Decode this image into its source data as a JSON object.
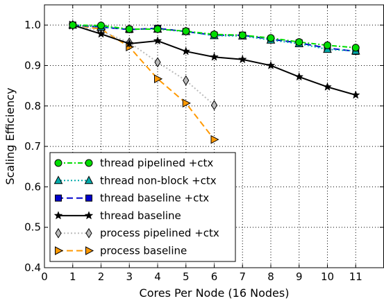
{
  "chart_data": {
    "type": "line",
    "xlabel": "Cores Per Node (16 Nodes)",
    "ylabel": "Scaling Efficiency",
    "xlim": [
      0,
      12
    ],
    "ylim": [
      0.4,
      1.05
    ],
    "xticks": [
      0,
      1,
      2,
      3,
      4,
      5,
      6,
      7,
      8,
      9,
      10,
      11
    ],
    "yticks": [
      0.4,
      0.5,
      0.6,
      0.7,
      0.8,
      0.9,
      1.0
    ],
    "ytick_labels": [
      "0.4",
      "0.5",
      "0.6",
      "0.7",
      "0.8",
      "0.9",
      "1.0"
    ],
    "grid": true,
    "legend_position": "lower-left",
    "series": [
      {
        "name": "thread pipelined +ctx",
        "color": "#00dd00",
        "marker": "circle",
        "line_style": "dashdot",
        "x": [
          1,
          2,
          3,
          4,
          5,
          6,
          7,
          8,
          9,
          10,
          11
        ],
        "y": [
          1.0,
          0.999,
          0.99,
          0.99,
          0.985,
          0.977,
          0.975,
          0.968,
          0.958,
          0.95,
          0.944
        ]
      },
      {
        "name": "thread non-block +ctx",
        "color": "#00aaaa",
        "marker": "triangle-up",
        "line_style": "dotted",
        "x": [
          1,
          2,
          3,
          4,
          5,
          6,
          7,
          8,
          9,
          10,
          11
        ],
        "y": [
          1.0,
          0.995,
          0.99,
          0.99,
          0.984,
          0.974,
          0.973,
          0.963,
          0.954,
          0.94,
          0.936
        ]
      },
      {
        "name": "thread baseline +ctx",
        "color": "#0000cc",
        "marker": "square",
        "line_style": "dashed",
        "x": [
          1,
          2,
          3,
          4,
          5,
          6,
          7,
          8,
          9,
          10,
          11
        ],
        "y": [
          1.0,
          0.995,
          0.989,
          0.992,
          0.984,
          0.975,
          0.975,
          0.965,
          0.956,
          0.943,
          0.935
        ]
      },
      {
        "name": "thread baseline",
        "color": "#000000",
        "marker": "star",
        "line_style": "solid",
        "x": [
          1,
          2,
          3,
          4,
          5,
          6,
          7,
          8,
          9,
          10,
          11
        ],
        "y": [
          1.0,
          0.978,
          0.954,
          0.961,
          0.935,
          0.921,
          0.915,
          0.9,
          0.872,
          0.847,
          0.827
        ]
      },
      {
        "name": "process pipelined +ctx",
        "color": "#bbbbbb",
        "marker": "diamond",
        "line_style": "dotted",
        "x": [
          1,
          2,
          3,
          4,
          5,
          6
        ],
        "y": [
          1.0,
          0.985,
          0.957,
          0.908,
          0.863,
          0.802
        ]
      },
      {
        "name": "process baseline",
        "color": "#ff9900",
        "marker": "triangle-right",
        "line_style": "dashed",
        "x": [
          1,
          2,
          3,
          4,
          5,
          6
        ],
        "y": [
          1.0,
          0.99,
          0.946,
          0.867,
          0.807,
          0.717
        ]
      }
    ]
  }
}
